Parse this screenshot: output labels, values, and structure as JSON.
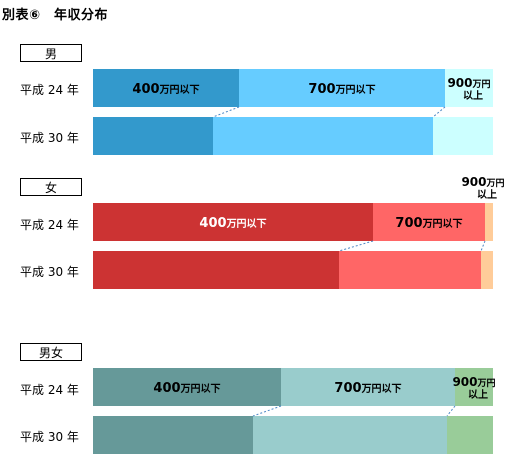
{
  "page": {
    "title": "別表⑥　年収分布"
  },
  "colors": {
    "male": [
      "#3399cc",
      "#66ccff",
      "#ccffff"
    ],
    "female": [
      "#cc3333",
      "#ff6666",
      "#ffcc99"
    ],
    "both": [
      "#669999",
      "#99cccc",
      "#99cc99"
    ],
    "connector": "#4a86c5"
  },
  "chart_data": {
    "type": "bar",
    "orientation": "horizontal",
    "stacked": "100%",
    "segment_labels": [
      "400万円以下",
      "700万円以下",
      "900万円以上"
    ],
    "panels": [
      {
        "name": "男",
        "categories": [
          "平成 24 年",
          "平成 30 年"
        ],
        "series": [
          {
            "name": "400万円以下",
            "values": [
              36.5,
              30.0
            ]
          },
          {
            "name": "700万円以下",
            "values": [
              51.5,
              55.0
            ]
          },
          {
            "name": "900万円以上",
            "values": [
              12.0,
              15.0
            ]
          }
        ]
      },
      {
        "name": "女",
        "categories": [
          "平成 24 年",
          "平成 30 年"
        ],
        "series": [
          {
            "name": "400万円以下",
            "values": [
              70.0,
              61.5
            ]
          },
          {
            "name": "700万円以下",
            "values": [
              28.0,
              35.5
            ]
          },
          {
            "name": "900万円以上",
            "values": [
              2.0,
              3.0
            ]
          }
        ]
      },
      {
        "name": "男女",
        "categories": [
          "平成 24 年",
          "平成 30 年"
        ],
        "series": [
          {
            "name": "400万円以下",
            "values": [
              47.0,
              40.0
            ]
          },
          {
            "name": "700万円以下",
            "values": [
              43.5,
              48.5
            ]
          },
          {
            "name": "900万円以上",
            "values": [
              9.5,
              11.5
            ]
          }
        ]
      }
    ]
  }
}
